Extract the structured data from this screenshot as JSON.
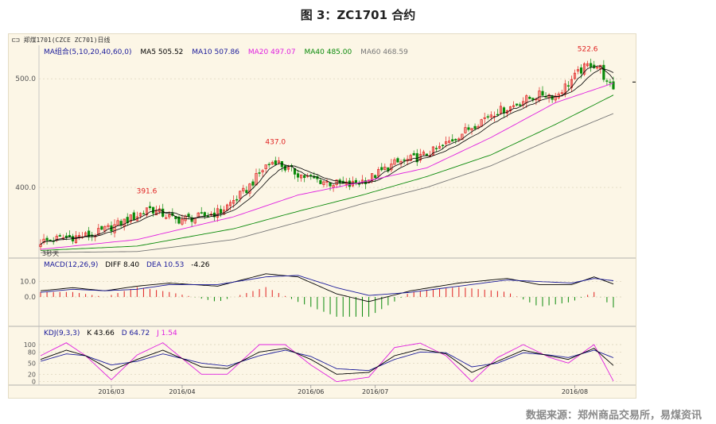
{
  "figure": {
    "title": "图 3：ZC1701 合约",
    "source": "数据来源：郑州商品交易所，易煤资讯"
  },
  "panel": {
    "header": "郑煤1701(CZCE ZC701)日线",
    "period_label": "3秒天"
  },
  "colors": {
    "background": "#fcf6e6",
    "up": "#e02020",
    "down": "#0a8a0a",
    "ma5": "#000000",
    "ma10": "#000000",
    "ma20": "#e020e0",
    "ma40": "#0a8a0a",
    "ma60": "#777777",
    "label": "#1a1a9a"
  },
  "legends": {
    "ma": {
      "name": "MA组合(5,10,20,40,60,0)",
      "items": [
        {
          "label": "MA5 505.52",
          "color": "#000000"
        },
        {
          "label": "MA10 507.86",
          "color": "#1a1a9a"
        },
        {
          "label": "MA20 497.07",
          "color": "#e020e0"
        },
        {
          "label": "MA40 485.00",
          "color": "#0a8a0a"
        },
        {
          "label": "MA60 468.59",
          "color": "#777777"
        }
      ]
    },
    "macd": {
      "name": "MACD(12,26,9)",
      "items": [
        "DIFF 8.40",
        "DEA 10.53",
        "-4.26"
      ]
    },
    "kdj": {
      "name": "KDJ(9,3,3)",
      "items": [
        "K 43.66",
        "D 64.72",
        "J 1.54"
      ]
    }
  },
  "chart_data": [
    {
      "type": "candlestick",
      "panel": "price",
      "y_ticks": [
        "500.0",
        "400.0"
      ],
      "ylim": [
        335,
        525
      ],
      "x_ticks": [
        "2016/03",
        "2016/04",
        "2016/06",
        "2016/07",
        "2016/08"
      ],
      "annotations": [
        {
          "text": "391.6",
          "index": 33,
          "value": 391.6
        },
        {
          "text": "437.0",
          "index": 73,
          "value": 437.0
        },
        {
          "text": "522.6",
          "index": 170,
          "value": 522.6
        }
      ],
      "anchors_close": [
        [
          0,
          350
        ],
        [
          8,
          354
        ],
        [
          16,
          356
        ],
        [
          24,
          366
        ],
        [
          32,
          377
        ],
        [
          33,
          382
        ],
        [
          36,
          378
        ],
        [
          42,
          370
        ],
        [
          50,
          373
        ],
        [
          56,
          378
        ],
        [
          64,
          398
        ],
        [
          70,
          420
        ],
        [
          73,
          425
        ],
        [
          76,
          418
        ],
        [
          82,
          410
        ],
        [
          90,
          404
        ],
        [
          96,
          402
        ],
        [
          102,
          408
        ],
        [
          110,
          422
        ],
        [
          118,
          428
        ],
        [
          124,
          436
        ],
        [
          130,
          448
        ],
        [
          136,
          460
        ],
        [
          140,
          468
        ],
        [
          146,
          474
        ],
        [
          150,
          480
        ],
        [
          156,
          486
        ],
        [
          160,
          484
        ],
        [
          164,
          496
        ],
        [
          168,
          508
        ],
        [
          171,
          514
        ],
        [
          174,
          510
        ],
        [
          176,
          495
        ],
        [
          178,
          492
        ]
      ],
      "ma_series": [
        {
          "name": "MA20",
          "color": "#e020e0",
          "points": [
            [
              0,
              343
            ],
            [
              30,
              352
            ],
            [
              60,
              373
            ],
            [
              80,
              393
            ],
            [
              100,
              405
            ],
            [
              120,
              418
            ],
            [
              140,
              446
            ],
            [
              160,
              478
            ],
            [
              178,
              496
            ]
          ]
        },
        {
          "name": "MA40",
          "color": "#0a8a0a",
          "points": [
            [
              0,
              342
            ],
            [
              30,
              346
            ],
            [
              60,
              362
            ],
            [
              80,
              378
            ],
            [
              100,
              393
            ],
            [
              120,
              410
            ],
            [
              140,
              430
            ],
            [
              160,
              458
            ],
            [
              178,
              485
            ]
          ]
        },
        {
          "name": "MA60",
          "color": "#777777",
          "points": [
            [
              0,
              340
            ],
            [
              30,
              341
            ],
            [
              60,
              352
            ],
            [
              80,
              368
            ],
            [
              100,
              385
            ],
            [
              120,
              400
            ],
            [
              140,
              420
            ],
            [
              160,
              446
            ],
            [
              178,
              468
            ]
          ]
        }
      ]
    },
    {
      "type": "macd",
      "panel": "macd",
      "y_ticks": [
        "10.0",
        "0.0"
      ],
      "ylim": [
        -18,
        18
      ],
      "diff": [
        [
          0,
          4
        ],
        [
          10,
          6
        ],
        [
          20,
          4
        ],
        [
          30,
          7
        ],
        [
          40,
          9
        ],
        [
          55,
          7
        ],
        [
          70,
          15
        ],
        [
          80,
          13
        ],
        [
          92,
          2
        ],
        [
          102,
          -3
        ],
        [
          115,
          4
        ],
        [
          130,
          9
        ],
        [
          145,
          12
        ],
        [
          155,
          8
        ],
        [
          165,
          8
        ],
        [
          172,
          13
        ],
        [
          178,
          8.4
        ]
      ],
      "dea": [
        [
          0,
          3
        ],
        [
          10,
          5
        ],
        [
          20,
          4
        ],
        [
          30,
          5
        ],
        [
          40,
          8
        ],
        [
          55,
          8
        ],
        [
          70,
          13
        ],
        [
          80,
          14
        ],
        [
          92,
          6
        ],
        [
          102,
          1
        ],
        [
          115,
          3
        ],
        [
          130,
          7
        ],
        [
          145,
          11
        ],
        [
          155,
          10
        ],
        [
          165,
          9
        ],
        [
          172,
          12
        ],
        [
          178,
          10.53
        ]
      ]
    },
    {
      "type": "kdj",
      "panel": "kdj",
      "y_ticks": [
        "100",
        "80",
        "50",
        "20",
        "0"
      ],
      "ylim": [
        -5,
        115
      ],
      "k": [
        [
          0,
          60
        ],
        [
          8,
          85
        ],
        [
          14,
          70
        ],
        [
          22,
          30
        ],
        [
          30,
          60
        ],
        [
          38,
          85
        ],
        [
          50,
          40
        ],
        [
          58,
          35
        ],
        [
          68,
          80
        ],
        [
          76,
          90
        ],
        [
          84,
          60
        ],
        [
          92,
          20
        ],
        [
          102,
          25
        ],
        [
          110,
          70
        ],
        [
          118,
          88
        ],
        [
          126,
          75
        ],
        [
          134,
          25
        ],
        [
          142,
          55
        ],
        [
          150,
          85
        ],
        [
          158,
          70
        ],
        [
          164,
          60
        ],
        [
          172,
          90
        ],
        [
          178,
          43.66
        ]
      ],
      "d": [
        [
          0,
          55
        ],
        [
          8,
          75
        ],
        [
          14,
          70
        ],
        [
          22,
          45
        ],
        [
          30,
          55
        ],
        [
          38,
          75
        ],
        [
          50,
          50
        ],
        [
          58,
          42
        ],
        [
          68,
          70
        ],
        [
          76,
          85
        ],
        [
          84,
          68
        ],
        [
          92,
          35
        ],
        [
          102,
          30
        ],
        [
          110,
          60
        ],
        [
          118,
          80
        ],
        [
          126,
          78
        ],
        [
          134,
          40
        ],
        [
          142,
          50
        ],
        [
          150,
          78
        ],
        [
          158,
          72
        ],
        [
          164,
          65
        ],
        [
          172,
          85
        ],
        [
          178,
          64.72
        ]
      ],
      "j": [
        [
          0,
          70
        ],
        [
          8,
          105
        ],
        [
          14,
          70
        ],
        [
          22,
          5
        ],
        [
          30,
          72
        ],
        [
          38,
          105
        ],
        [
          50,
          20
        ],
        [
          58,
          20
        ],
        [
          68,
          100
        ],
        [
          76,
          100
        ],
        [
          84,
          45
        ],
        [
          92,
          0
        ],
        [
          102,
          12
        ],
        [
          110,
          92
        ],
        [
          118,
          104
        ],
        [
          126,
          70
        ],
        [
          134,
          0
        ],
        [
          142,
          65
        ],
        [
          150,
          100
        ],
        [
          158,
          66
        ],
        [
          164,
          50
        ],
        [
          172,
          100
        ],
        [
          178,
          1.54
        ]
      ]
    }
  ]
}
